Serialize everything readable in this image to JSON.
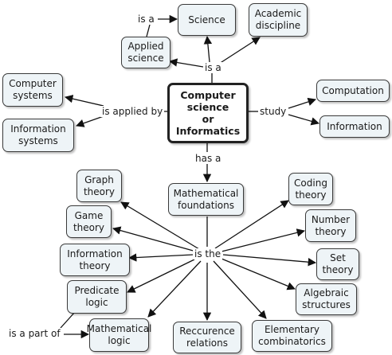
{
  "nodes": {
    "science": "Science",
    "academic_discipline": "Academic\ndiscipline",
    "applied_science": "Applied\nscience",
    "computer_systems": "Computer\nsystems",
    "information_systems": "Information\nsystems",
    "main": "Computer\nscience\nor\nInformatics",
    "computation": "Computation",
    "information": "Information",
    "mathematical_foundations": "Mathematical\nfoundations",
    "graph_theory": "Graph\ntheory",
    "game_theory": "Game\ntheory",
    "information_theory": "Information\ntheory",
    "predicate_logic": "Predicate\nlogic",
    "mathematical_logic": "Mathematical\nlogic",
    "recurrence_relations": "Reccurence\nrelations",
    "elementary_combinatorics": "Elementary\ncombinatorics",
    "algebraic_structures": "Algebraic\nstructures",
    "set_theory": "Set\ntheory",
    "number_theory": "Number\ntheory",
    "coding_theory": "Coding\ntheory"
  },
  "links": {
    "is_a_top": "is a",
    "is_a_main": "is a",
    "is_applied_by": "is applied by",
    "study": "study",
    "has_a": "has a",
    "is_the": "is the",
    "is_a_part_of": "is a part of"
  }
}
